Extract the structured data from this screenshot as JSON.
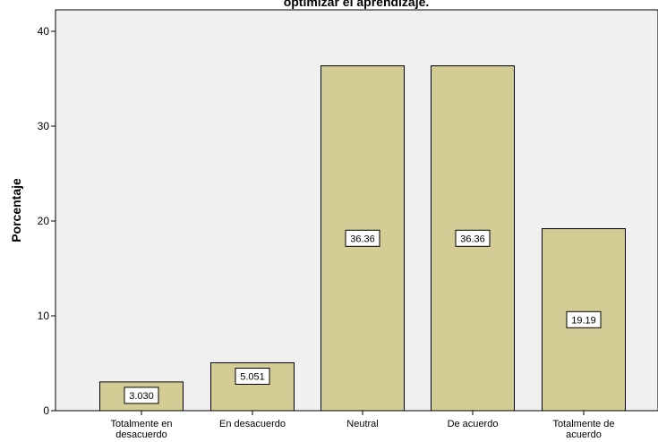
{
  "chart_data": {
    "type": "bar",
    "title": "optimizar el aprendizaje.",
    "ylabel": "Porcentaje",
    "xlabel": "",
    "ylim": [
      0,
      42
    ],
    "yticks": [
      0,
      10,
      20,
      30,
      40
    ],
    "grid": false,
    "categories": [
      [
        "Totalmente en",
        "desacuerdo"
      ],
      [
        "En desacuerdo"
      ],
      [
        "Neutral"
      ],
      [
        "De acuerdo"
      ],
      [
        "Totalmente de",
        "acuerdo"
      ]
    ],
    "values": [
      3.03,
      5.051,
      36.36,
      36.36,
      19.19
    ],
    "data_labels": [
      "3.030",
      "5.051",
      "36.36",
      "36.36",
      "19.19"
    ],
    "colors": {
      "bar_fill": "#d3cc94",
      "bar_stroke": "#000000",
      "plot_background": "#f0f0f0",
      "label_box": "#ffffff"
    }
  }
}
